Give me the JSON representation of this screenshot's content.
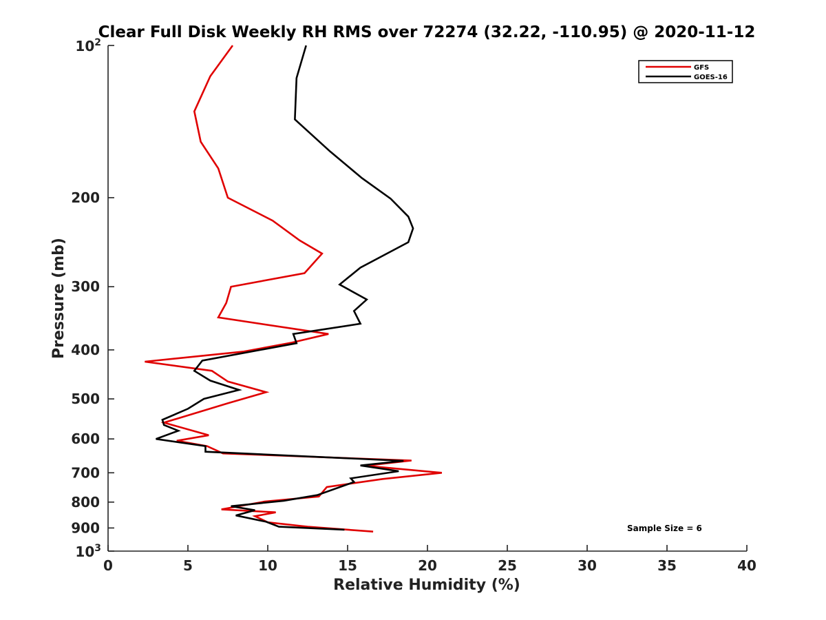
{
  "chart_data": {
    "type": "line",
    "title": "Clear Full Disk Weekly RH RMS over 72274 (32.22, -110.95) @ 2020-11-12",
    "xlabel": "Relative Humidity (%)",
    "ylabel": "Pressure (mb)",
    "xlim": [
      0,
      40
    ],
    "ylim": [
      100,
      1000
    ],
    "y_scale": "log",
    "y_reversed": true,
    "grid": false,
    "legend_placement": "top-right",
    "x_ticks": [
      {
        "value": 0,
        "label": "0"
      },
      {
        "value": 5,
        "label": "5"
      },
      {
        "value": 10,
        "label": "10"
      },
      {
        "value": 15,
        "label": "15"
      },
      {
        "value": 20,
        "label": "20"
      },
      {
        "value": 25,
        "label": "25"
      },
      {
        "value": 30,
        "label": "30"
      },
      {
        "value": 35,
        "label": "35"
      },
      {
        "value": 40,
        "label": "40"
      }
    ],
    "y_ticks": [
      {
        "value": 100,
        "base": "10",
        "exp": "2"
      },
      {
        "value": 200,
        "label": "200"
      },
      {
        "value": 300,
        "label": "300"
      },
      {
        "value": 400,
        "label": "400"
      },
      {
        "value": 500,
        "label": "500"
      },
      {
        "value": 600,
        "label": "600"
      },
      {
        "value": 700,
        "label": "700"
      },
      {
        "value": 800,
        "label": "800"
      },
      {
        "value": 900,
        "label": "900"
      },
      {
        "value": 1000,
        "base": "10",
        "exp": "3"
      }
    ],
    "series": [
      {
        "name": "GFS",
        "color": "#e00000",
        "points": [
          [
            7.8,
            100
          ],
          [
            6.4,
            115
          ],
          [
            5.4,
            135
          ],
          [
            5.8,
            155
          ],
          [
            6.9,
            175
          ],
          [
            7.5,
            200
          ],
          [
            10.3,
            222
          ],
          [
            12.0,
            243
          ],
          [
            13.4,
            258
          ],
          [
            12.3,
            282
          ],
          [
            7.7,
            300
          ],
          [
            7.4,
            323
          ],
          [
            6.9,
            345
          ],
          [
            13.8,
            372
          ],
          [
            11.5,
            387
          ],
          [
            8.5,
            403
          ],
          [
            2.3,
            422
          ],
          [
            6.5,
            440
          ],
          [
            7.5,
            462
          ],
          [
            9.9,
            485
          ],
          [
            7.5,
            510
          ],
          [
            3.5,
            557
          ],
          [
            6.3,
            590
          ],
          [
            4.3,
            605
          ],
          [
            6.2,
            620
          ],
          [
            7.2,
            641
          ],
          [
            19.0,
            662
          ],
          [
            16.1,
            678
          ],
          [
            20.9,
            700
          ],
          [
            17.2,
            720
          ],
          [
            13.7,
            747
          ],
          [
            13.2,
            780
          ],
          [
            9.8,
            798
          ],
          [
            7.1,
            827
          ],
          [
            10.5,
            838
          ],
          [
            9.2,
            853
          ],
          [
            10.0,
            877
          ],
          [
            12.5,
            895
          ],
          [
            16.6,
            915
          ]
        ]
      },
      {
        "name": "GOES-16",
        "color": "#000000",
        "points": [
          [
            12.4,
            100
          ],
          [
            11.8,
            116
          ],
          [
            11.7,
            140
          ],
          [
            13.9,
            162
          ],
          [
            15.9,
            183
          ],
          [
            17.7,
            201
          ],
          [
            18.8,
            218
          ],
          [
            19.1,
            230
          ],
          [
            18.8,
            245
          ],
          [
            15.8,
            275
          ],
          [
            14.5,
            297
          ],
          [
            16.2,
            318
          ],
          [
            15.4,
            335
          ],
          [
            15.8,
            355
          ],
          [
            11.6,
            372
          ],
          [
            11.8,
            388
          ],
          [
            5.9,
            420
          ],
          [
            5.4,
            440
          ],
          [
            6.4,
            460
          ],
          [
            8.2,
            480
          ],
          [
            6.0,
            500
          ],
          [
            5.0,
            523
          ],
          [
            3.4,
            550
          ],
          [
            3.5,
            563
          ],
          [
            4.4,
            578
          ],
          [
            3.0,
            600
          ],
          [
            6.1,
            620
          ],
          [
            6.1,
            636
          ],
          [
            18.5,
            663
          ],
          [
            15.8,
            677
          ],
          [
            18.2,
            695
          ],
          [
            15.2,
            718
          ],
          [
            15.4,
            730
          ],
          [
            13.1,
            775
          ],
          [
            11.0,
            795
          ],
          [
            7.7,
            815
          ],
          [
            9.2,
            830
          ],
          [
            8.0,
            850
          ],
          [
            9.9,
            875
          ],
          [
            10.7,
            895
          ],
          [
            14.8,
            907
          ]
        ]
      }
    ],
    "annotation": "Sample Size = 6"
  }
}
